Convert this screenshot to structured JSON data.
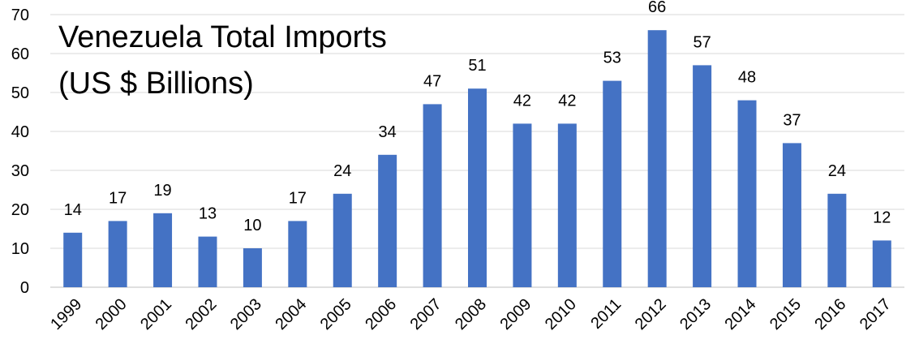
{
  "chart_data": {
    "type": "bar",
    "title_lines": [
      "Venezuela Total Imports",
      "(US $ Billions)"
    ],
    "xlabel": "",
    "ylabel": "",
    "categories": [
      "1999",
      "2000",
      "2001",
      "2002",
      "2003",
      "2004",
      "2005",
      "2006",
      "2007",
      "2008",
      "2009",
      "2010",
      "2011",
      "2012",
      "2013",
      "2014",
      "2015",
      "2016",
      "2017"
    ],
    "values": [
      14,
      17,
      19,
      13,
      10,
      17,
      24,
      34,
      47,
      51,
      42,
      42,
      53,
      66,
      57,
      48,
      37,
      24,
      12
    ],
    "data_labels": [
      "14",
      "17",
      "19",
      "13",
      "10",
      "17",
      "24",
      "34",
      "47",
      "51",
      "42",
      "42",
      "53",
      "66",
      "57",
      "48",
      "37",
      "24",
      "12"
    ],
    "ylim": [
      0,
      70
    ],
    "yticks": [
      0,
      10,
      20,
      30,
      40,
      50,
      60,
      70
    ],
    "grid": true,
    "legend": "none",
    "colors": {
      "bar": "#4472C4",
      "grid": "#D9D9D9"
    }
  }
}
